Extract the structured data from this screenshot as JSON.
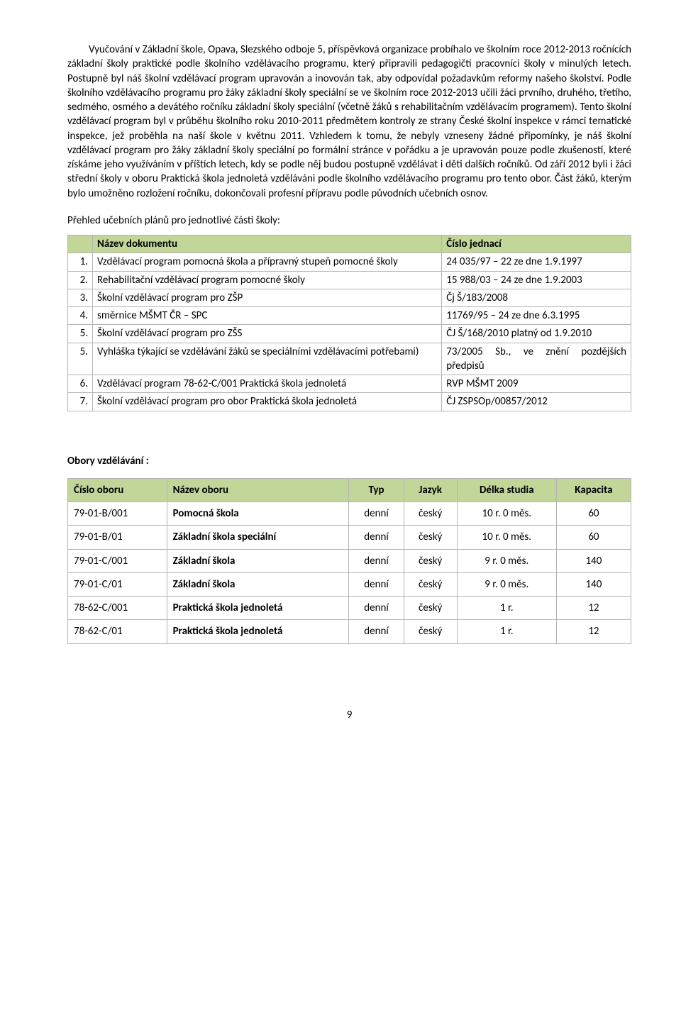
{
  "paragraph": "Vyučování v Základní škole, Opava, Slezského odboje 5, příspěvková organizace probíhalo ve školním roce 2012-2013 ročnících základní školy praktické podle školního vzdělávacího programu, který připravili pedagogičtí pracovníci školy v minulých letech. Postupně byl náš školní vzdělávací program upravován a inovován tak, aby odpovídal požadavkům reformy našeho školství. Podle školního vzdělávacího programu pro žáky základní školy speciální se ve školním roce 2012-2013 učili žáci prvního, druhého, třetího, sedmého, osmého a devátého ročníku základní školy speciální (včetně žáků s rehabilitačním vzdělávacím programem). Tento školní vzdělávací program byl v průběhu školního roku 2010-2011 předmětem kontroly ze strany České školní inspekce v rámci tematické inspekce, jež proběhla na naší škole v květnu 2011. Vzhledem k tomu, že nebyly vzneseny žádné připomínky, je náš školní vzdělávací program pro žáky základní školy speciální po formální stránce v pořádku a je upravován pouze podle zkušeností, které získáme jeho využíváním v příštích letech, kdy se podle něj budou postupně vzdělávat i děti dalších ročníků. Od září 2012 byli i žáci střední školy v oboru Praktická škola jednoletá vzděláváni podle školního vzdělávacího programu pro tento obor. Část žáků, kterým bylo umožněno rozložení ročníku, dokončovali profesní přípravu podle původních učebních osnov.",
  "subhead": "Přehled učebních plánů pro jednotlivé části školy:",
  "table1": {
    "headers": [
      "",
      "Název dokumentu",
      "Číslo jednací"
    ],
    "rows": [
      [
        "1.",
        "Vzdělávací program pomocná škola a přípravný stupeň pomocné školy",
        "24 035/97 – 22 ze dne 1.9.1997"
      ],
      [
        "2.",
        "Rehabilitační vzdělávací program pomocné školy",
        "15 988/03 – 24 ze dne 1.9.2003"
      ],
      [
        "3.",
        "Školní vzdělávací program pro ZŠP",
        "Čj Š/183/2008"
      ],
      [
        "4.",
        "směrnice MŠMT ČR – SPC",
        "11769/95 – 24  ze dne 6.3.1995"
      ],
      [
        "5.",
        "Školní vzdělávací program pro ZŠS",
        "ČJ Š/168/2010 platný od 1.9.2010"
      ],
      [
        "5.",
        "Vyhláška týkající se vzdělávání žáků se speciálními vzdělávacími potřebami)",
        "73/2005 Sb., ve znění pozdějších předpisů"
      ],
      [
        "6.",
        " Vzdělávací program 78-62-C/001 Praktická škola jednoletá",
        "RVP MŠMT 2009"
      ],
      [
        "7.",
        "Školní vzdělávací program pro obor Praktická škola jednoletá",
        "ČJ ZSPSOp/00857/2012"
      ]
    ]
  },
  "section2title": "Obory vzdělávání :",
  "table2": {
    "headers": [
      "Číslo oboru",
      "Název oboru",
      "Typ",
      "Jazyk",
      "Délka studia",
      "Kapacita"
    ],
    "rows": [
      [
        "79-01-B/001",
        "Pomocná škola",
        "denní",
        "český",
        "10 r. 0 měs.",
        "60"
      ],
      [
        "79-01-B/01",
        "Základní škola speciální",
        "denní",
        "český",
        "10 r. 0 měs.",
        "60"
      ],
      [
        "79-01-C/001",
        "Základní škola",
        "denní",
        "český",
        "9 r. 0 měs.",
        "140"
      ],
      [
        "79-01-C/01",
        "Základní škola",
        "denní",
        "český",
        "9 r. 0 měs.",
        "140"
      ],
      [
        "78-62-C/001",
        "Praktická škola jednoletá",
        "denní",
        "český",
        "1 r.",
        "12"
      ],
      [
        "78-62-C/01",
        "Praktická škola jednoletá",
        "denní",
        "český",
        "1 r.",
        "12"
      ]
    ]
  },
  "pageNumber": "9"
}
